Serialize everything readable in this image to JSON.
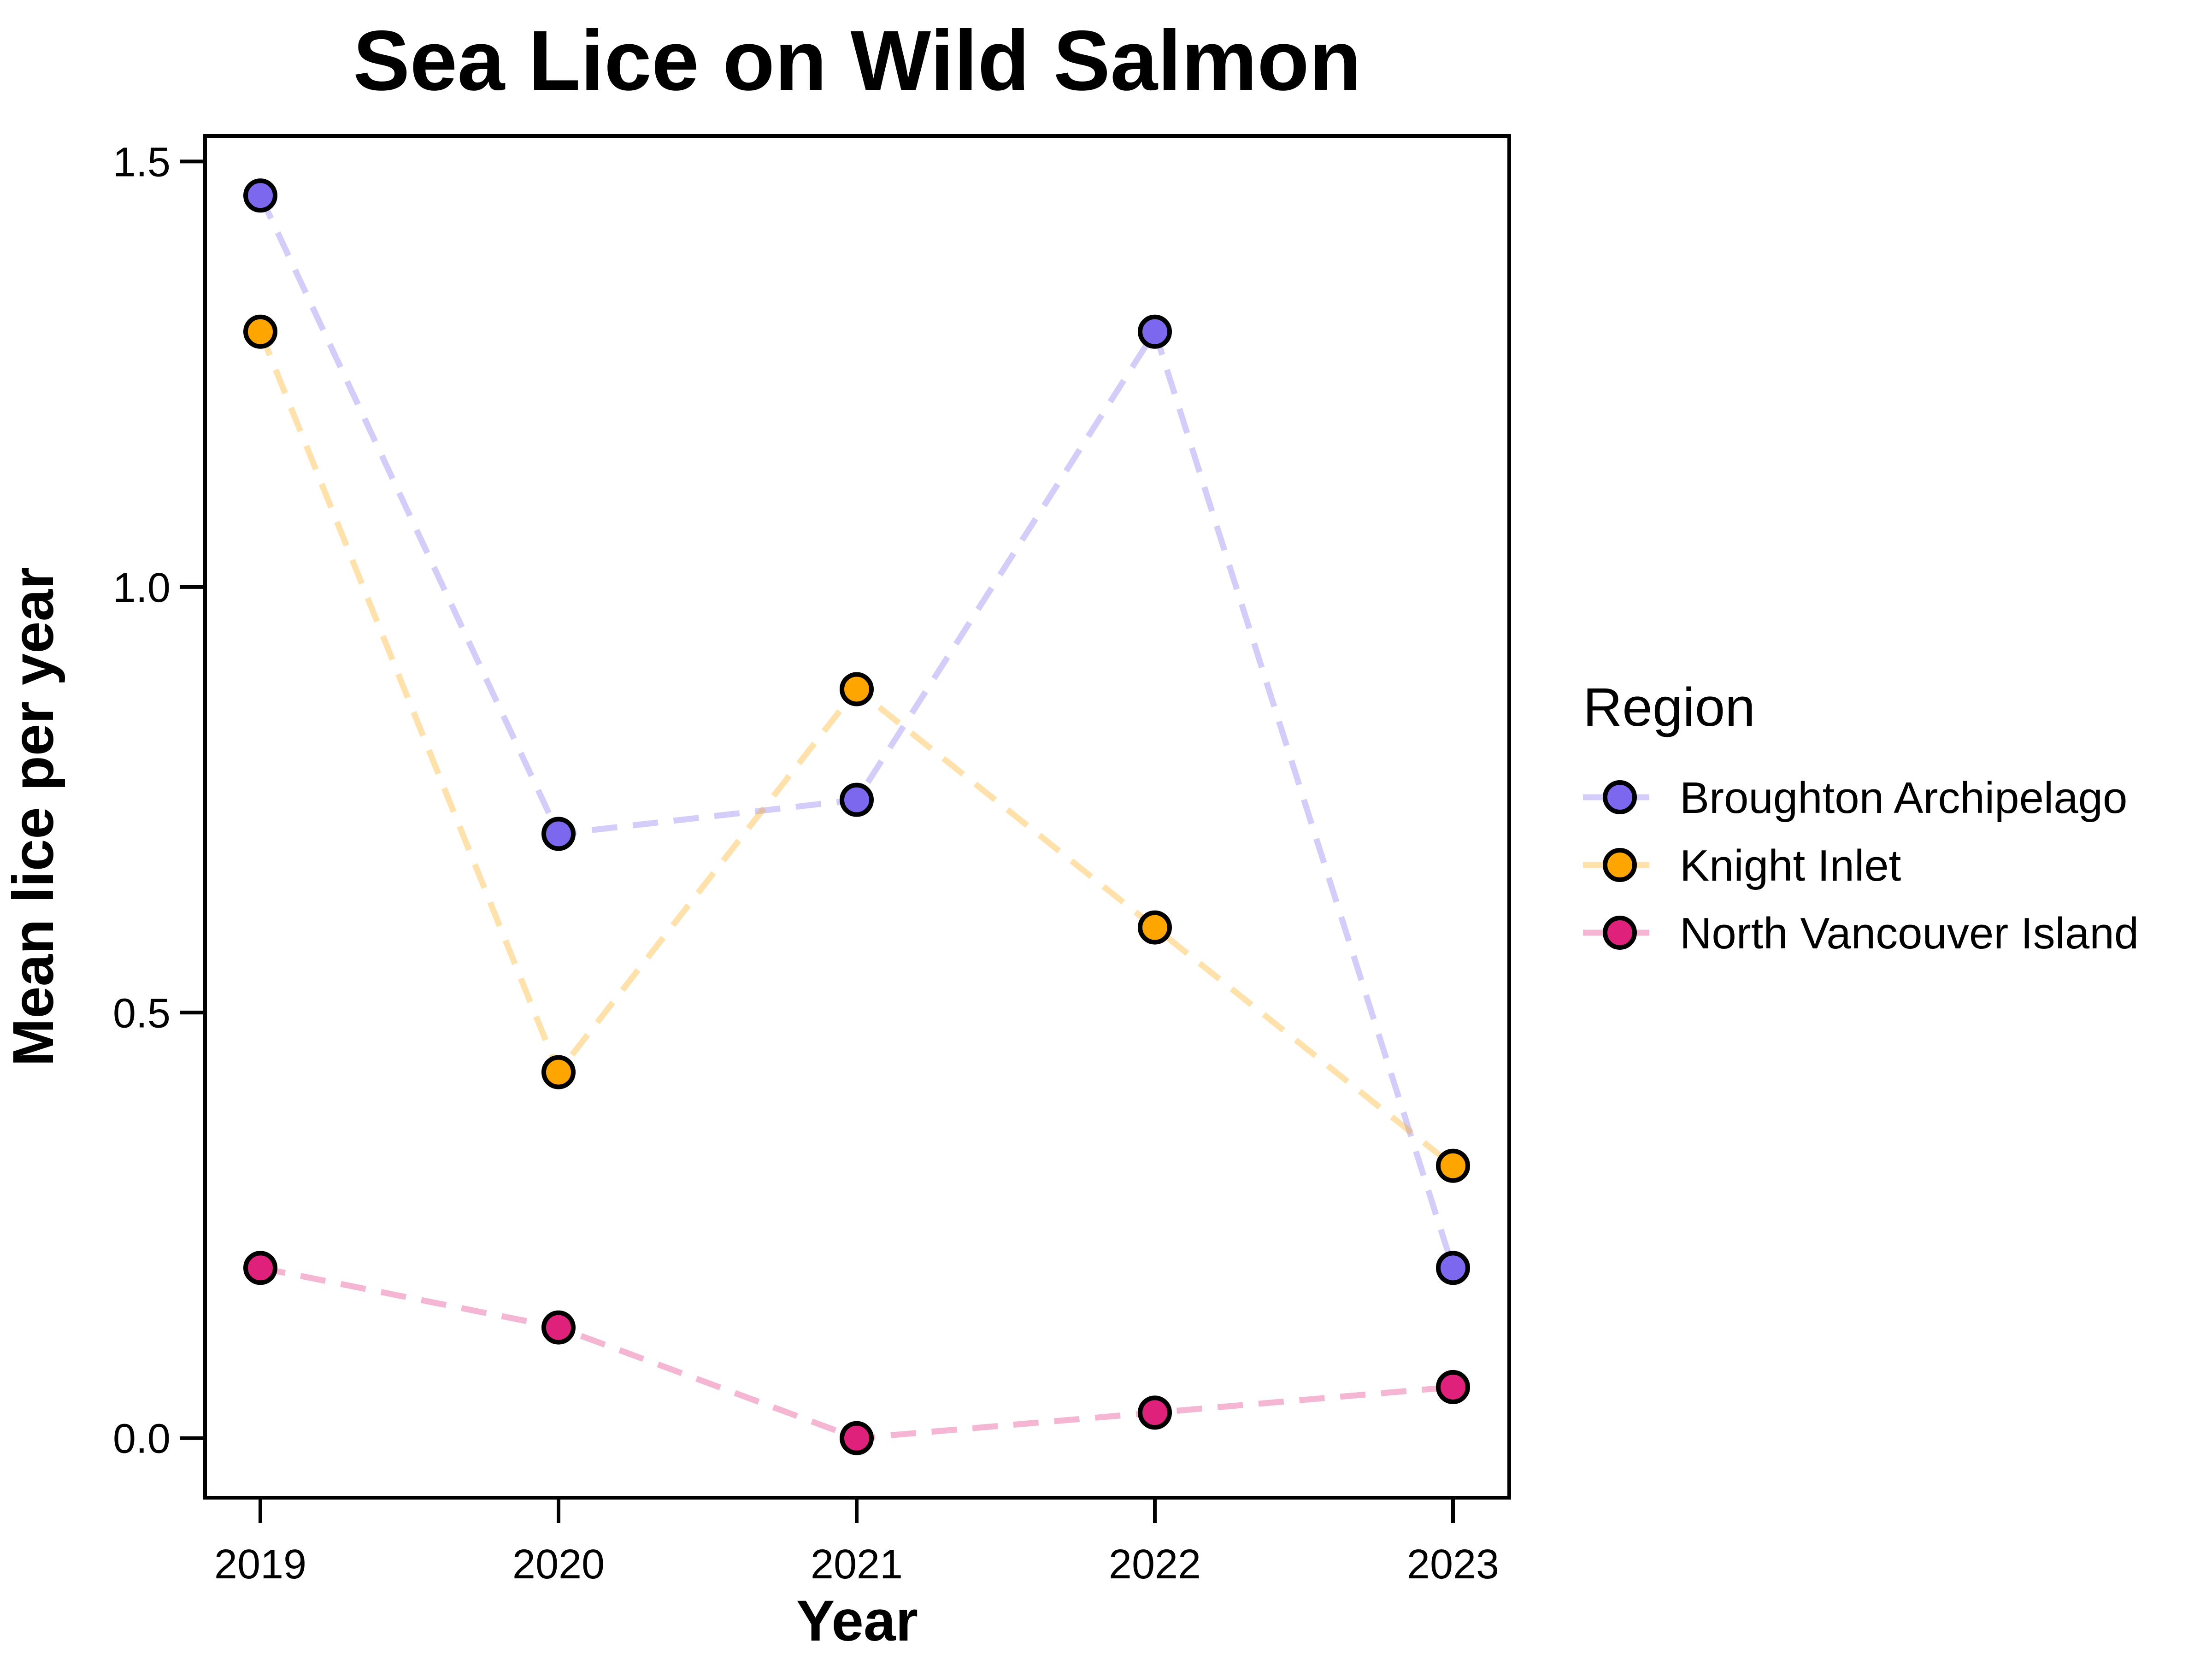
{
  "chart_data": {
    "type": "line",
    "title": "Sea Lice on Wild Salmon",
    "xlabel": "Year",
    "ylabel": "Mean lice per year",
    "x": [
      "2019",
      "2020",
      "2021",
      "2022",
      "2023"
    ],
    "ylim": [
      -0.07,
      1.53
    ],
    "yticks": [
      "0.0",
      "0.5",
      "1.0",
      "1.5"
    ],
    "grid": false,
    "legend": {
      "title": "Region",
      "placement": "right"
    },
    "series": [
      {
        "name": "Broughton Archipelago",
        "color": "#7b68ee",
        "values": [
          1.46,
          0.71,
          0.75,
          1.3,
          0.2
        ]
      },
      {
        "name": "Knight Inlet",
        "color": "#ffa500",
        "values": [
          1.3,
          0.43,
          0.88,
          0.6,
          0.32
        ]
      },
      {
        "name": "North Vancouver Island",
        "color": "#e0217c",
        "values": [
          0.2,
          0.13,
          0.0,
          0.03,
          0.06
        ]
      }
    ]
  }
}
